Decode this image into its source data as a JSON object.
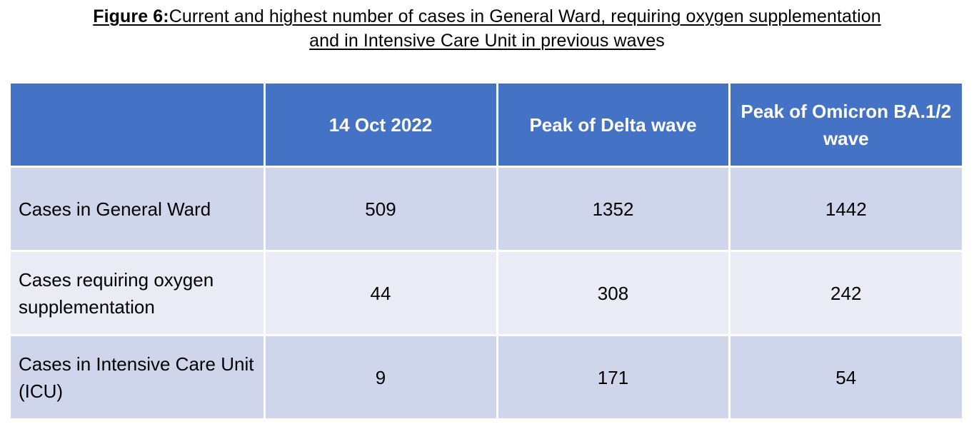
{
  "caption": {
    "label": "Figure 6:",
    "line1": "Current and highest number of cases in General Ward, requiring oxygen supplementation",
    "line2_underlined": "and in Intensive Care Unit in previous wave",
    "line2_tail": "s"
  },
  "table": {
    "headers": [
      "",
      "14 Oct 2022",
      "Peak of Delta wave",
      "Peak of Omicron BA.1/2 wave"
    ],
    "rows": [
      {
        "label": "Cases in General Ward",
        "values": [
          "509",
          "1352",
          "1442"
        ]
      },
      {
        "label": "Cases requiring oxygen supplementation",
        "values": [
          "44",
          "308",
          "242"
        ]
      },
      {
        "label": "Cases in Intensive Care Unit (ICU)",
        "values": [
          "9",
          "171",
          "54"
        ]
      }
    ]
  },
  "colors": {
    "header_background": "#4472c4",
    "row_band_dark": "#cfd5ea",
    "row_band_light": "#e9ebf5",
    "cell_border": "#ffffff"
  }
}
